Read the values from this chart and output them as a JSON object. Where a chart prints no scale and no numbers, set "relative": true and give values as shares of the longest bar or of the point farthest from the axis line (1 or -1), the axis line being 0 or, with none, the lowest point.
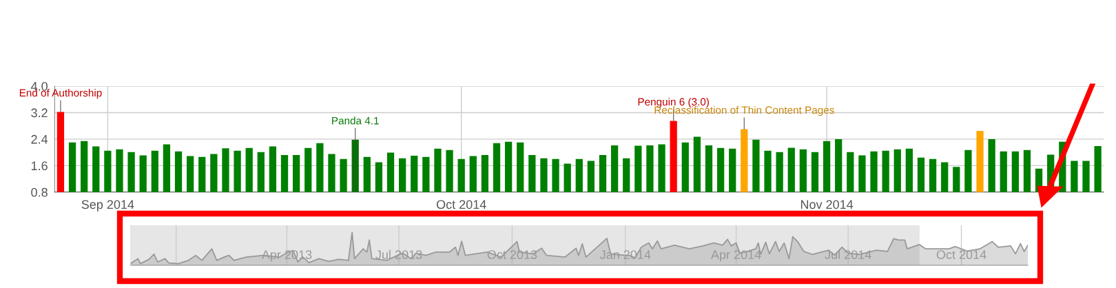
{
  "chart_data": [
    {
      "type": "bar",
      "grid": true,
      "x": [
        "2014-08-28",
        "2014-08-29",
        "2014-08-30",
        "2014-08-31",
        "2014-09-01",
        "2014-09-02",
        "2014-09-03",
        "2014-09-04",
        "2014-09-05",
        "2014-09-06",
        "2014-09-07",
        "2014-09-08",
        "2014-09-09",
        "2014-09-10",
        "2014-09-11",
        "2014-09-12",
        "2014-09-13",
        "2014-09-14",
        "2014-09-15",
        "2014-09-16",
        "2014-09-17",
        "2014-09-18",
        "2014-09-19",
        "2014-09-20",
        "2014-09-21",
        "2014-09-22",
        "2014-09-23",
        "2014-09-24",
        "2014-09-25",
        "2014-09-26",
        "2014-09-27",
        "2014-09-28",
        "2014-09-29",
        "2014-09-30",
        "2014-10-01",
        "2014-10-02",
        "2014-10-03",
        "2014-10-04",
        "2014-10-05",
        "2014-10-06",
        "2014-10-07",
        "2014-10-08",
        "2014-10-09",
        "2014-10-10",
        "2014-10-11",
        "2014-10-12",
        "2014-10-13",
        "2014-10-14",
        "2014-10-15",
        "2014-10-16",
        "2014-10-17",
        "2014-10-18",
        "2014-10-19",
        "2014-10-20",
        "2014-10-21",
        "2014-10-22",
        "2014-10-23",
        "2014-10-24",
        "2014-10-25",
        "2014-10-26",
        "2014-10-27",
        "2014-10-28",
        "2014-10-29",
        "2014-10-30",
        "2014-10-31",
        "2014-11-01",
        "2014-11-02",
        "2014-11-03",
        "2014-11-04",
        "2014-11-05",
        "2014-11-06",
        "2014-11-07",
        "2014-11-08",
        "2014-11-09",
        "2014-11-10",
        "2014-11-11",
        "2014-11-12",
        "2014-11-13",
        "2014-11-14",
        "2014-11-15",
        "2014-11-16",
        "2014-11-17",
        "2014-11-18",
        "2014-11-19",
        "2014-11-20",
        "2014-11-21",
        "2014-11-22",
        "2014-11-23",
        "2014-11-24"
      ],
      "values": [
        3.22,
        2.3,
        2.34,
        2.18,
        2.05,
        2.09,
        2.01,
        1.91,
        2.05,
        2.24,
        2.03,
        1.89,
        1.86,
        1.95,
        2.12,
        2.05,
        2.13,
        2.01,
        2.18,
        1.92,
        1.92,
        2.13,
        2.28,
        1.95,
        1.8,
        2.38,
        1.86,
        1.7,
        1.99,
        1.82,
        1.9,
        1.86,
        2.11,
        2.07,
        1.8,
        1.89,
        1.92,
        2.28,
        2.32,
        2.3,
        1.92,
        1.82,
        1.8,
        1.66,
        1.8,
        1.74,
        1.92,
        2.21,
        1.82,
        2.2,
        2.21,
        2.24,
        2.95,
        2.3,
        2.47,
        2.21,
        2.13,
        2.11,
        2.7,
        2.38,
        2.05,
        2.01,
        2.14,
        2.09,
        2.01,
        2.34,
        2.4,
        2.01,
        1.91,
        2.03,
        2.05,
        2.09,
        2.11,
        1.84,
        1.8,
        1.7,
        1.56,
        2.07,
        2.65,
        2.4,
        2.03,
        2.03,
        2.07,
        1.51,
        1.93,
        2.32,
        1.74,
        1.74,
        2.19
      ],
      "colors": [
        "#ff0000",
        "#008000",
        "#008000",
        "#008000",
        "#008000",
        "#008000",
        "#008000",
        "#008000",
        "#008000",
        "#008000",
        "#008000",
        "#008000",
        "#008000",
        "#008000",
        "#008000",
        "#008000",
        "#008000",
        "#008000",
        "#008000",
        "#008000",
        "#008000",
        "#008000",
        "#008000",
        "#008000",
        "#008000",
        "#0b6e0b",
        "#008000",
        "#008000",
        "#008000",
        "#008000",
        "#008000",
        "#008000",
        "#008000",
        "#008000",
        "#008000",
        "#008000",
        "#008000",
        "#008000",
        "#008000",
        "#008000",
        "#008000",
        "#008000",
        "#008000",
        "#008000",
        "#008000",
        "#008000",
        "#008000",
        "#008000",
        "#008000",
        "#008000",
        "#008000",
        "#008000",
        "#ff0000",
        "#008000",
        "#008000",
        "#008000",
        "#008000",
        "#008000",
        "#ffa500",
        "#008000",
        "#008000",
        "#008000",
        "#008000",
        "#008000",
        "#008000",
        "#008000",
        "#008000",
        "#008000",
        "#008000",
        "#008000",
        "#008000",
        "#008000",
        "#008000",
        "#008000",
        "#008000",
        "#008000",
        "#008000",
        "#008000",
        "#ffa500",
        "#008000",
        "#008000",
        "#008000",
        "#008000",
        "#008000",
        "#008000",
        "#008000",
        "#008000",
        "#008000",
        "#008000"
      ],
      "xlim": [
        "2014-08-27T12:00",
        "2014-11-24T12:00"
      ],
      "xticks": [
        {
          "value": "2014-09-01",
          "label": "Sep 2014"
        },
        {
          "value": "2014-10-01",
          "label": "Oct 2014"
        },
        {
          "value": "2014-11-01",
          "label": "Nov 2014"
        }
      ],
      "ylim": [
        0.8,
        4.0
      ],
      "yticks": [
        0.8,
        1.6,
        2.4,
        3.2,
        {
          "value": 4.0,
          "label": "4.0"
        }
      ],
      "annotations": [
        {
          "text": "End of Authorship",
          "x": "2014-08-28",
          "y": 3.22
        },
        {
          "text": "Panda 4.1",
          "x": "2014-09-22",
          "y": 2.38
        },
        {
          "text": "Penguin 6 (3.0)",
          "x": "2014-10-19",
          "y": 2.95
        },
        {
          "text": "Reclassification of Thin Content Pages",
          "x": "2014-10-25",
          "y": 2.7
        }
      ]
    },
    {
      "type": "area",
      "relative": true,
      "grid": "x",
      "tick_labels": "x",
      "color": "#999999",
      "x": [
        "2012-11-25",
        "2012-12-01",
        "2012-12-03",
        "2012-12-10",
        "2012-12-14",
        "2012-12-17",
        "2012-12-23",
        "2012-12-26",
        "2013-01-03",
        "2013-01-11",
        "2013-01-17",
        "2013-01-22",
        "2013-01-30",
        "2013-02-03",
        "2013-02-09",
        "2013-02-13",
        "2013-02-17",
        "2013-02-27",
        "2013-03-13",
        "2013-03-26",
        "2013-04-02",
        "2013-04-06",
        "2013-04-10",
        "2013-04-14",
        "2013-04-19",
        "2013-04-27",
        "2013-05-05",
        "2013-05-13",
        "2013-05-21",
        "2013-05-24",
        "2013-05-26",
        "2013-06-02",
        "2013-06-05",
        "2013-06-07",
        "2013-06-09",
        "2013-06-21",
        "2013-07-04",
        "2013-07-11",
        "2013-07-15",
        "2013-07-23",
        "2013-07-31",
        "2013-08-11",
        "2013-08-16",
        "2013-08-18",
        "2013-08-21",
        "2013-08-24",
        "2013-09-11",
        "2013-09-22",
        "2013-10-05",
        "2013-10-07",
        "2013-10-18",
        "2013-10-25",
        "2013-10-29",
        "2013-11-13",
        "2013-11-22",
        "2013-11-24",
        "2013-11-27",
        "2013-11-30",
        "2013-12-17",
        "2013-12-20",
        "2013-12-24",
        "2014-01-05",
        "2014-01-09",
        "2014-01-14",
        "2014-01-20",
        "2014-01-23",
        "2014-01-27",
        "2014-01-30",
        "2014-02-10",
        "2014-02-22",
        "2014-03-05",
        "2014-03-14",
        "2014-03-21",
        "2014-03-25",
        "2014-03-28",
        "2014-04-01",
        "2014-04-04",
        "2014-04-10",
        "2014-04-17",
        "2014-04-19",
        "2014-04-21",
        "2014-04-25",
        "2014-04-28",
        "2014-05-03",
        "2014-05-06",
        "2014-05-10",
        "2014-05-14",
        "2014-05-17",
        "2014-05-21",
        "2014-05-26",
        "2014-06-02",
        "2014-06-15",
        "2014-06-20",
        "2014-06-26",
        "2014-07-01",
        "2014-07-10",
        "2014-07-24",
        "2014-08-02",
        "2014-08-07",
        "2014-08-11",
        "2014-08-16",
        "2014-08-18",
        "2014-08-28",
        "2014-09-02",
        "2014-09-21",
        "2014-09-26",
        "2014-10-06",
        "2014-10-16",
        "2014-10-26",
        "2014-10-31",
        "2014-11-10",
        "2014-11-14",
        "2014-11-18",
        "2014-11-21",
        "2014-11-24"
      ],
      "values": [
        0.05,
        0.2,
        0.05,
        0.18,
        0.34,
        0.1,
        0.2,
        0.07,
        0.05,
        0.15,
        0.3,
        0.15,
        0.5,
        0.15,
        0.25,
        0.3,
        0.15,
        0.25,
        0.3,
        0.25,
        0.4,
        0.45,
        0.1,
        0.25,
        0.08,
        0.2,
        0.12,
        0.18,
        0.15,
        1.0,
        0.2,
        0.5,
        0.4,
        0.77,
        0.2,
        0.15,
        0.37,
        0.2,
        0.37,
        0.3,
        0.4,
        0.4,
        0.55,
        0.3,
        0.73,
        0.3,
        0.4,
        0.25,
        0.72,
        0.4,
        0.35,
        0.52,
        0.3,
        0.25,
        0.52,
        0.3,
        0.65,
        0.25,
        0.82,
        0.35,
        0.33,
        0.29,
        0.23,
        0.55,
        0.68,
        0.5,
        0.74,
        0.5,
        0.61,
        0.5,
        0.59,
        0.68,
        0.61,
        0.79,
        0.59,
        0.68,
        0.37,
        0.42,
        0.5,
        0.68,
        0.33,
        0.7,
        0.35,
        0.72,
        0.42,
        0.68,
        0.2,
        0.87,
        0.72,
        0.42,
        0.33,
        0.46,
        0.31,
        0.55,
        0.37,
        0.33,
        0.46,
        0.42,
        0.81,
        0.77,
        0.77,
        0.5,
        0.63,
        0.5,
        0.5,
        0.57,
        0.43,
        0.5,
        0.72,
        0.55,
        0.59,
        0.35,
        0.66,
        0.42,
        0.61
      ],
      "xlim": [
        "2012-11-25",
        "2014-11-24"
      ],
      "xticks": [
        {
          "value": "2013-01-01",
          "label": null
        },
        {
          "value": "2013-04-01",
          "label": "Apr 2013"
        },
        {
          "value": "2013-07-01",
          "label": "Jul 2013"
        },
        {
          "value": "2013-10-01",
          "label": "Oct 2013"
        },
        {
          "value": "2014-01-01",
          "label": "Jan 2014"
        },
        {
          "value": "2014-04-01",
          "label": "Apr 2014"
        },
        {
          "value": "2014-07-01",
          "label": "Jul 2014"
        },
        {
          "value": "2014-10-01",
          "label": "Oct 2014"
        }
      ],
      "bands": [
        {
          "axis": "x",
          "from": "2014-08-28",
          "to": "2014-11-24",
          "color": "#ffffff"
        }
      ]
    }
  ]
}
